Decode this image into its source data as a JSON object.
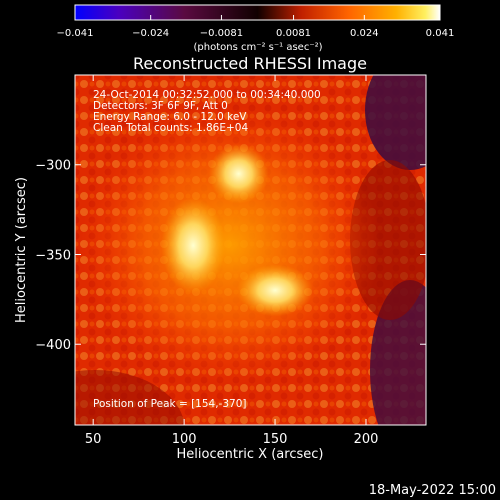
{
  "chart_data": {
    "type": "heatmap",
    "title": "Reconstructed RHESSI Image",
    "xlabel": "Heliocentric X (arcsec)",
    "ylabel": "Heliocentric Y (arcsec)",
    "xlim": [
      40,
      233
    ],
    "ylim": [
      -445,
      -250
    ],
    "x_ticks": [
      50,
      100,
      150,
      200
    ],
    "y_ticks": [
      -300,
      -350,
      -400
    ],
    "colorbar": {
      "label": "(photons cm⁻² s⁻¹ asec⁻²)",
      "range": [
        -0.041,
        0.041
      ],
      "ticks": [
        "−0.041",
        "−0.024",
        "−0.0081",
        "0.0081",
        "0.024",
        "0.041"
      ],
      "tick_values": [
        -0.041,
        -0.024,
        -0.0081,
        0.0081,
        0.024,
        0.041
      ],
      "colormap": [
        "#0000ff",
        "#6a00b0",
        "#4b0a30",
        "#100000",
        "#c81e00",
        "#ff6000",
        "#ffaa00",
        "#ffee55",
        "#ffffff"
      ]
    },
    "annotations": [
      "24-Oct-2014 00:32:52.000 to 00:34:40.000",
      "Detectors: 3F 6F 9F, Att 0",
      "Energy Range: 6.0 - 12.0 keV",
      "Clean     Total counts: 1.86E+04",
      "Position of Peak = [154,-370]"
    ],
    "peak": {
      "x": 154,
      "y": -370
    },
    "sources": [
      {
        "x": 105,
        "y": -345
      },
      {
        "x": 150,
        "y": -370
      },
      {
        "x": 130,
        "y": -305
      }
    ]
  },
  "footer": {
    "timestamp": "18-May-2022 15:00"
  }
}
